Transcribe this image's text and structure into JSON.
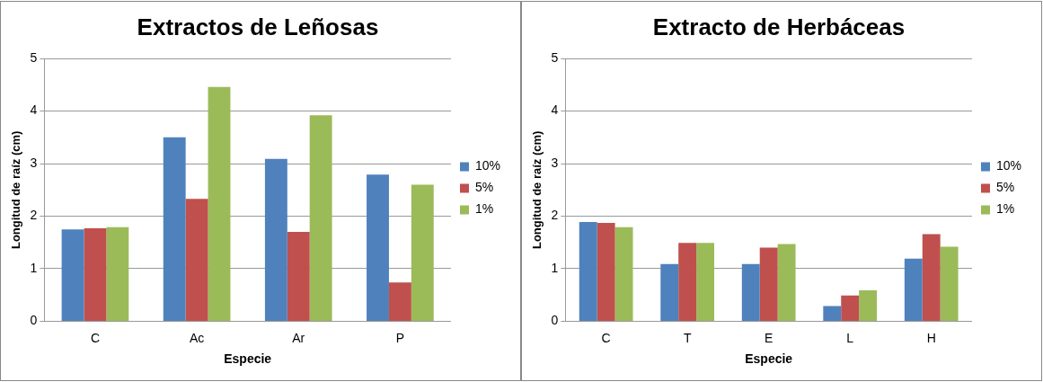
{
  "chart_data": [
    {
      "type": "bar",
      "title": "Extractos de Leñosas",
      "xlabel": "Especie",
      "ylabel": "Longitud de raíz (cm)",
      "categories": [
        "C",
        "Ac",
        "Ar",
        "P"
      ],
      "series": [
        {
          "name": "10%",
          "color": "#4f81bd",
          "values": [
            1.75,
            3.5,
            3.09,
            2.79
          ]
        },
        {
          "name": "5%",
          "color": "#c0504d",
          "values": [
            1.77,
            2.33,
            1.7,
            0.74
          ]
        },
        {
          "name": "1%",
          "color": "#9bbb59",
          "values": [
            1.79,
            4.46,
            3.92,
            2.6
          ]
        }
      ],
      "ylim": [
        0,
        5
      ],
      "yticks": [
        0,
        1,
        2,
        3,
        4,
        5
      ],
      "grid": "y",
      "legend": "right"
    },
    {
      "type": "bar",
      "title": "Extracto de Herbáceas",
      "xlabel": "Especie",
      "ylabel": "Longitud de raíz (cm)",
      "categories": [
        "C",
        "T",
        "E",
        "L",
        "H"
      ],
      "series": [
        {
          "name": "10%",
          "color": "#4f81bd",
          "values": [
            1.89,
            1.09,
            1.09,
            0.29,
            1.19
          ]
        },
        {
          "name": "5%",
          "color": "#c0504d",
          "values": [
            1.87,
            1.49,
            1.4,
            0.49,
            1.66
          ]
        },
        {
          "name": "1%",
          "color": "#9bbb59",
          "values": [
            1.79,
            1.49,
            1.47,
            0.59,
            1.42
          ]
        }
      ],
      "ylim": [
        0,
        5
      ],
      "yticks": [
        0,
        1,
        2,
        3,
        4,
        5
      ],
      "grid": "y",
      "legend": "right"
    }
  ]
}
